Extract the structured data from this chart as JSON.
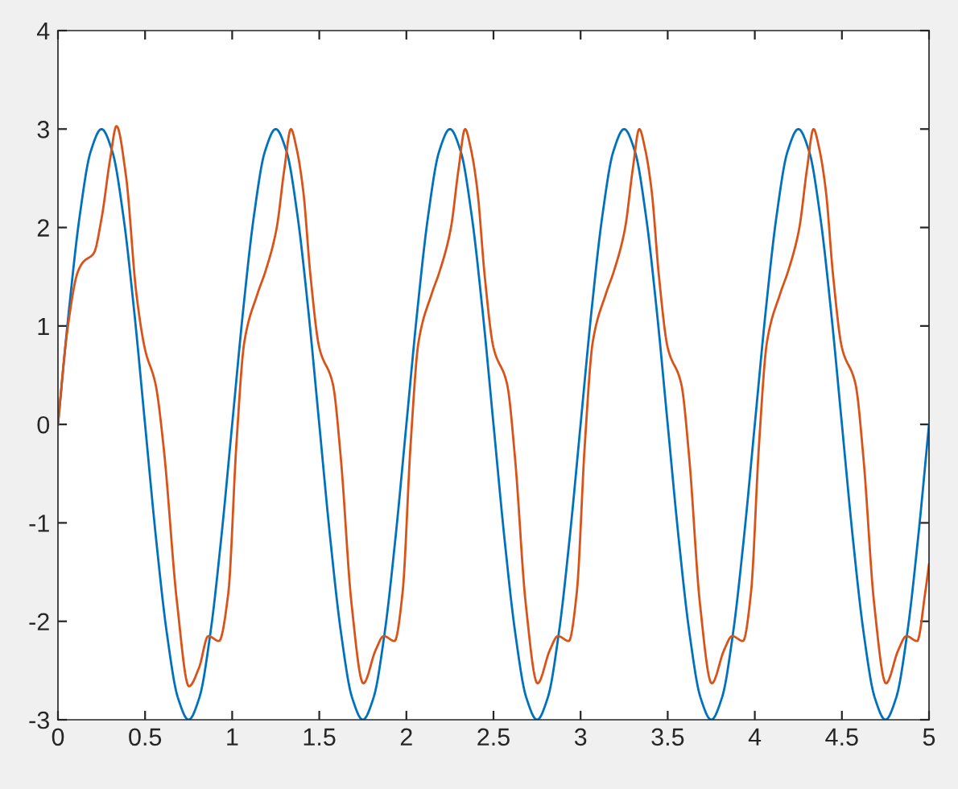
{
  "chart_data": {
    "type": "line",
    "xlim": [
      0,
      5
    ],
    "ylim": [
      -3,
      4
    ],
    "xticks": [
      0,
      0.5,
      1,
      1.5,
      2,
      2.5,
      3,
      3.5,
      4,
      4.5,
      5
    ],
    "yticks": [
      -3,
      -2,
      -1,
      0,
      1,
      2,
      3,
      4
    ],
    "grid": false,
    "legend": false,
    "series": [
      {
        "color": "#0072bd",
        "x": [
          0,
          0.0625,
          0.125,
          0.1875,
          0.25,
          0.3125,
          0.375,
          0.4375,
          0.5,
          0.5625,
          0.625,
          0.6875,
          0.75,
          0.8125,
          0.875,
          0.9375,
          1,
          1.0625,
          1.125,
          1.1875,
          1.25,
          1.3125,
          1.375,
          1.4375,
          1.5,
          1.5625,
          1.625,
          1.6875,
          1.75,
          1.8125,
          1.875,
          1.9375,
          2,
          2.0625,
          2.125,
          2.1875,
          2.25,
          2.3125,
          2.375,
          2.4375,
          2.5,
          2.5625,
          2.625,
          2.6875,
          2.75,
          2.8125,
          2.875,
          2.9375,
          3,
          3.0625,
          3.125,
          3.1875,
          3.25,
          3.3125,
          3.375,
          3.4375,
          3.5,
          3.5625,
          3.625,
          3.6875,
          3.75,
          3.8125,
          3.875,
          3.9375,
          4,
          4.0625,
          4.125,
          4.1875,
          4.25,
          4.3125,
          4.375,
          4.4375,
          4.5,
          4.5625,
          4.625,
          4.6875,
          4.75,
          4.8125,
          4.875,
          4.9375,
          5
        ],
        "values": [
          0,
          1.15,
          2.12,
          2.77,
          3,
          2.77,
          2.12,
          1.15,
          0,
          -1.15,
          -2.12,
          -2.77,
          -3,
          -2.77,
          -2.12,
          -1.15,
          0,
          1.15,
          2.12,
          2.77,
          3,
          2.77,
          2.12,
          1.15,
          0,
          -1.15,
          -2.12,
          -2.77,
          -3,
          -2.77,
          -2.12,
          -1.15,
          0,
          1.15,
          2.12,
          2.77,
          3,
          2.77,
          2.12,
          1.15,
          0,
          -1.15,
          -2.12,
          -2.77,
          -3,
          -2.77,
          -2.12,
          -1.15,
          0,
          1.15,
          2.12,
          2.77,
          3,
          2.77,
          2.12,
          1.15,
          0,
          -1.15,
          -2.12,
          -2.77,
          -3,
          -2.77,
          -2.12,
          -1.15,
          0,
          1.15,
          2.12,
          2.77,
          3,
          2.77,
          2.12,
          1.15,
          0,
          -1.15,
          -2.12,
          -2.77,
          -3,
          -2.77,
          -2.12,
          -1.15,
          0
        ]
      },
      {
        "color": "#d95319",
        "x": [
          0,
          0.05,
          0.114,
          0.145,
          0.206,
          0.25,
          0.3,
          0.336,
          0.39,
          0.45,
          0.5,
          0.56,
          0.607,
          0.684,
          0.752,
          0.81,
          0.863,
          0.924,
          0.978,
          1.024,
          1.07,
          1.146,
          1.19,
          1.254,
          1.3,
          1.337,
          1.37,
          1.408,
          1.45,
          1.5,
          1.578,
          1.624,
          1.685,
          1.753,
          1.824,
          1.87,
          1.932,
          1.978,
          2.024,
          2.07,
          2.146,
          2.19,
          2.254,
          2.3,
          2.337,
          2.37,
          2.408,
          2.45,
          2.5,
          2.578,
          2.624,
          2.685,
          2.753,
          2.824,
          2.87,
          2.932,
          2.978,
          3.024,
          3.07,
          3.146,
          3.19,
          3.254,
          3.3,
          3.337,
          3.37,
          3.408,
          3.45,
          3.5,
          3.578,
          3.624,
          3.685,
          3.753,
          3.824,
          3.87,
          3.932,
          3.978,
          4.024,
          4.07,
          4.146,
          4.19,
          4.254,
          4.3,
          4.337,
          4.37,
          4.408,
          4.45,
          4.5,
          4.578,
          4.624,
          4.685,
          4.753,
          4.824,
          4.87,
          4.932,
          4.978,
          5
        ],
        "values": [
          0,
          0.9,
          1.55,
          1.65,
          1.74,
          2.09,
          2.7,
          3.03,
          2.53,
          1.33,
          0.76,
          0.41,
          -0.24,
          -1.82,
          -2.66,
          -2.47,
          -2.15,
          -2.2,
          -1.71,
          -0.21,
          0.84,
          1.33,
          1.55,
          1.98,
          2.6,
          3.0,
          2.8,
          2.37,
          1.5,
          0.78,
          0.41,
          -0.35,
          -1.82,
          -2.63,
          -2.29,
          -2.15,
          -2.2,
          -1.71,
          -0.21,
          0.84,
          1.33,
          1.55,
          1.98,
          2.6,
          3.0,
          2.8,
          2.37,
          1.5,
          0.78,
          0.41,
          -0.35,
          -1.82,
          -2.63,
          -2.29,
          -2.15,
          -2.2,
          -1.71,
          -0.21,
          0.84,
          1.33,
          1.55,
          1.98,
          2.6,
          3.0,
          2.8,
          2.37,
          1.5,
          0.78,
          0.41,
          -0.35,
          -1.82,
          -2.63,
          -2.29,
          -2.15,
          -2.2,
          -1.71,
          -0.21,
          0.84,
          1.33,
          1.55,
          1.98,
          2.6,
          3.0,
          2.8,
          2.37,
          1.5,
          0.78,
          0.41,
          -0.35,
          -1.82,
          -2.63,
          -2.29,
          -2.15,
          -2.2,
          -1.71,
          -1.42
        ]
      }
    ]
  }
}
